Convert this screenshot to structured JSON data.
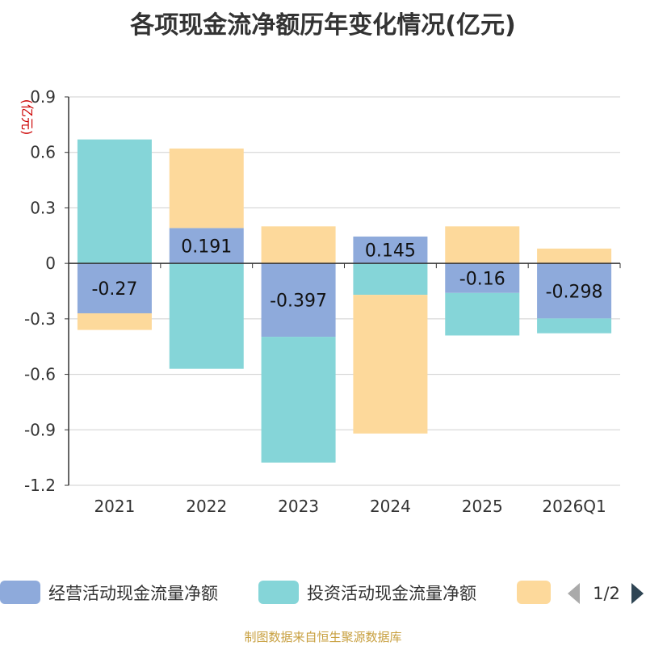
{
  "chart_data": {
    "type": "bar",
    "stacked": true,
    "title": "各项现金流净额历年变化情况(亿元)",
    "ylabel": "(亿元)",
    "xlabel": "",
    "ylim": [
      -1.2,
      0.9
    ],
    "yticks": [
      0.9,
      0.6,
      0.3,
      0,
      -0.3,
      -0.6,
      -0.9,
      -1.2
    ],
    "ytick_labels": [
      "0.9",
      "0.6",
      "0.3",
      "0",
      "-0.3",
      "-0.6",
      "-0.9",
      "-1.2"
    ],
    "categories": [
      "2021",
      "2022",
      "2023",
      "2024",
      "2025",
      "2026Q1"
    ],
    "series": [
      {
        "name": "经营活动现金流量净额",
        "color": "#8eaadb",
        "values": [
          -0.27,
          0.191,
          -0.397,
          0.145,
          -0.16,
          -0.298
        ],
        "labels": [
          "-0.27",
          "0.191",
          "-0.397",
          "0.145",
          "-0.16",
          "-0.298"
        ]
      },
      {
        "name": "投资活动现金流量净额",
        "color": "#85d5d8",
        "values": [
          0.67,
          -0.57,
          -0.68,
          -0.17,
          -0.23,
          -0.08
        ]
      },
      {
        "name": "",
        "color": "#fdd99b",
        "values": [
          -0.09,
          0.43,
          0.2,
          -0.75,
          0.2,
          0.08
        ]
      }
    ],
    "legend": {
      "placement": "bottom",
      "page": "1/2"
    },
    "grid": true
  },
  "footer": "制图数据来自恒生聚源数据库"
}
